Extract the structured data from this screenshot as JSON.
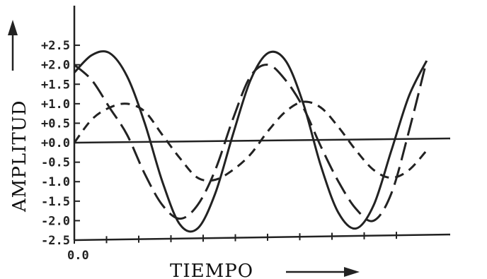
{
  "chart_data": {
    "type": "line",
    "xlabel": "TIEMPO",
    "ylabel": "AMPLITUD",
    "x_tick_labels": [
      "0.0"
    ],
    "y_ticks": [
      2.5,
      2.0,
      1.5,
      1.0,
      0.5,
      0.0,
      -0.5,
      -1.0,
      -1.5,
      -2.0,
      -2.5
    ],
    "y_tick_labels": [
      "+2.5",
      "+2.0",
      "+1.5",
      "+1.0",
      "+0.5",
      "+0.0",
      "-0.5",
      "-1.0",
      "-1.5",
      "-2.0",
      "-2.5"
    ],
    "ylim": [
      -2.5,
      2.9
    ],
    "xlim": [
      0,
      10.67
    ],
    "x_tick_count": 11,
    "grid": false,
    "series": [
      {
        "style": "solid",
        "x": [
          0,
          0.5,
          1,
          1.5,
          2,
          2.5,
          3,
          3.5,
          4,
          4.5,
          5,
          5.5,
          6,
          6.5,
          7,
          7.5,
          8,
          8.5,
          9,
          9.5,
          10
        ],
        "y": [
          1.8,
          2.25,
          2.3,
          1.7,
          0.5,
          -1.0,
          -2.1,
          -2.2,
          -1.3,
          0.2,
          1.6,
          2.3,
          2.1,
          1.0,
          -0.6,
          -1.8,
          -2.2,
          -1.6,
          -0.2,
          1.2,
          2.1
        ]
      },
      {
        "style": "long-dash",
        "x": [
          0,
          0.5,
          1,
          1.5,
          2,
          2.5,
          3,
          3.5,
          4,
          4.5,
          5,
          5.5,
          6,
          6.5,
          7,
          7.5,
          8,
          8.5,
          9,
          9.5,
          10
        ],
        "y": [
          2.0,
          1.6,
          0.9,
          0.2,
          -0.8,
          -1.6,
          -1.95,
          -1.6,
          -0.7,
          0.6,
          1.7,
          2.0,
          1.6,
          0.9,
          -0.1,
          -1.0,
          -1.7,
          -2.0,
          -1.3,
          0.3,
          2.1
        ]
      },
      {
        "style": "short-dash",
        "x": [
          0,
          0.5,
          1,
          1.5,
          2,
          2.5,
          3,
          3.5,
          4,
          4.5,
          5,
          5.5,
          6,
          6.5,
          7,
          7.5,
          8,
          8.5,
          9,
          9.5,
          10
        ],
        "y": [
          0.0,
          0.6,
          0.9,
          1.0,
          0.8,
          0.2,
          -0.4,
          -0.9,
          -0.95,
          -0.7,
          -0.3,
          0.3,
          0.8,
          1.05,
          0.9,
          0.4,
          -0.2,
          -0.7,
          -0.9,
          -0.7,
          -0.2
        ]
      }
    ]
  }
}
